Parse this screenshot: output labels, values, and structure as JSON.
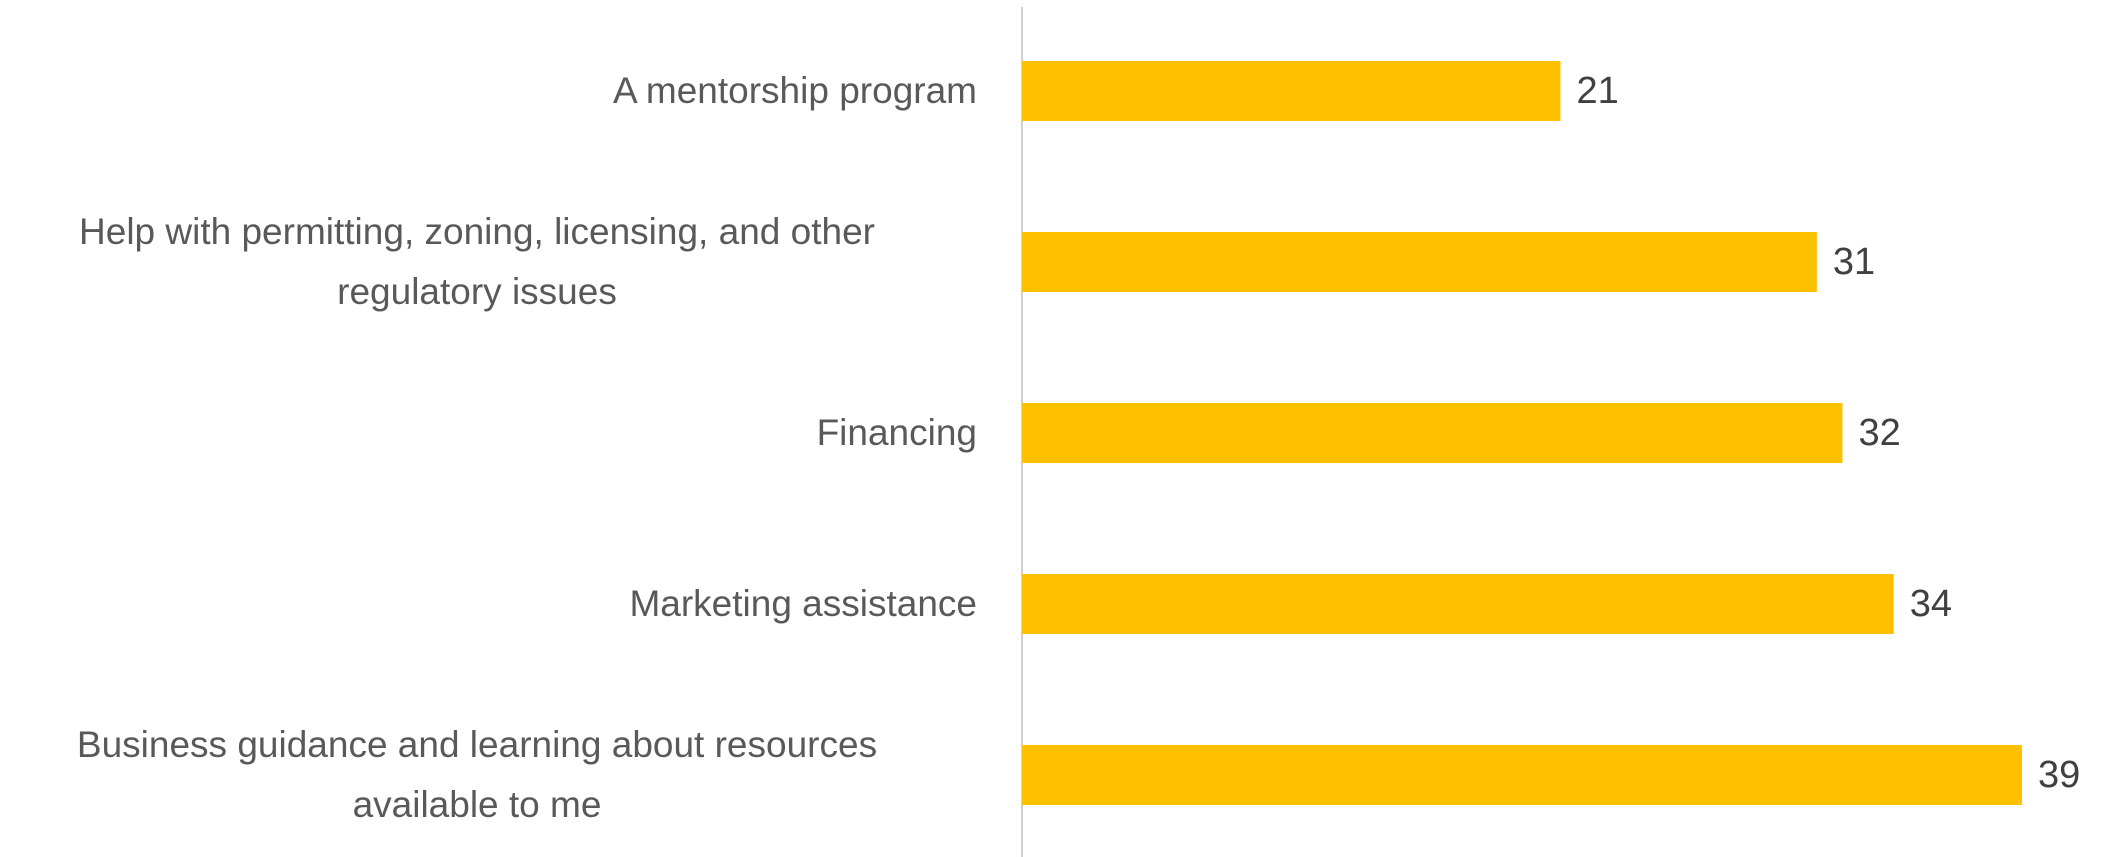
{
  "chart_data": {
    "type": "barh",
    "categories": [
      "A mentorship program",
      "Help with permitting, zoning, licensing, and other\nregulatory issues",
      "Financing",
      "Marketing assistance",
      "Business guidance and learning about resources\navailable to me"
    ],
    "values": [
      21,
      31,
      32,
      34,
      39
    ],
    "color": "#FFC000",
    "xlim": [
      0,
      42
    ]
  }
}
